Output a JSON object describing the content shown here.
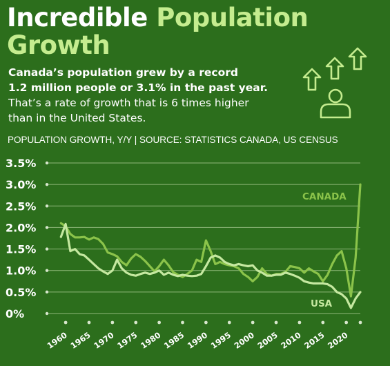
{
  "header": {
    "title_white": "Incredible",
    "title_green": "Population",
    "title_green_2": "Growth",
    "subtitle_bold_1": "Canada’s population grew by a record",
    "subtitle_bold_2": "1.2 million people or 3.1% in the past year.",
    "subtitle_regular_1": "That’s a rate of growth that is 6 times higher",
    "subtitle_regular_2": "than in the United States.",
    "source": "POPULATION GROWTH, Y/Y | SOURCE: STATISTICS CANADA, US CENSUS"
  },
  "icons": [
    "arrow-up-icon",
    "arrow-up-icon",
    "arrow-up-icon",
    "person-icon"
  ],
  "colors": {
    "background": "#2c6e1c",
    "accent": "#c5ec8f",
    "canada": "#8bc34a",
    "usa": "#c5e8a0"
  },
  "chart_data": {
    "type": "line",
    "title": "",
    "xlabel": "",
    "ylabel": "",
    "xlim": [
      1956,
      2023
    ],
    "ylim": [
      0,
      3.5
    ],
    "y_tick_labels": [
      "0%",
      "0.5%",
      "1.0%",
      "1.5%",
      "2.0%",
      "2.5%",
      "3.0%",
      "3.5%"
    ],
    "x_tick_labels": [
      "1960",
      "1965",
      "1970",
      "1975",
      "1980",
      "1985",
      "1990",
      "1995",
      "2000",
      "2005",
      "2010",
      "2015",
      "2020"
    ],
    "grid": true,
    "series": [
      {
        "name": "CANADA",
        "points": [
          [
            1959,
            2.1
          ],
          [
            1960,
            2.03
          ],
          [
            1961,
            1.85
          ],
          [
            1962,
            1.77
          ],
          [
            1963,
            1.77
          ],
          [
            1964,
            1.78
          ],
          [
            1965,
            1.72
          ],
          [
            1966,
            1.77
          ],
          [
            1967,
            1.73
          ],
          [
            1968,
            1.62
          ],
          [
            1969,
            1.42
          ],
          [
            1970,
            1.38
          ],
          [
            1971,
            1.33
          ],
          [
            1972,
            1.2
          ],
          [
            1973,
            1.12
          ],
          [
            1974,
            1.28
          ],
          [
            1975,
            1.38
          ],
          [
            1976,
            1.32
          ],
          [
            1977,
            1.22
          ],
          [
            1978,
            1.1
          ],
          [
            1979,
            0.98
          ],
          [
            1980,
            1.1
          ],
          [
            1981,
            1.25
          ],
          [
            1982,
            1.12
          ],
          [
            1983,
            0.96
          ],
          [
            1984,
            0.9
          ],
          [
            1985,
            0.85
          ],
          [
            1986,
            0.92
          ],
          [
            1987,
            1.0
          ],
          [
            1988,
            1.25
          ],
          [
            1989,
            1.2
          ],
          [
            1990,
            1.7
          ],
          [
            1991,
            1.45
          ],
          [
            1992,
            1.15
          ],
          [
            1993,
            1.2
          ],
          [
            1994,
            1.15
          ],
          [
            1995,
            1.12
          ],
          [
            1996,
            1.1
          ],
          [
            1997,
            1.05
          ],
          [
            1998,
            0.92
          ],
          [
            1999,
            0.85
          ],
          [
            2000,
            0.75
          ],
          [
            2001,
            0.85
          ],
          [
            2002,
            1.05
          ],
          [
            2003,
            0.92
          ],
          [
            2004,
            0.88
          ],
          [
            2005,
            0.92
          ],
          [
            2006,
            0.92
          ],
          [
            2007,
            0.97
          ],
          [
            2008,
            1.1
          ],
          [
            2009,
            1.08
          ],
          [
            2010,
            1.05
          ],
          [
            2011,
            0.95
          ],
          [
            2012,
            1.05
          ],
          [
            2013,
            0.98
          ],
          [
            2014,
            0.92
          ],
          [
            2015,
            0.75
          ],
          [
            2016,
            0.9
          ],
          [
            2017,
            1.15
          ],
          [
            2018,
            1.35
          ],
          [
            2019,
            1.45
          ],
          [
            2020,
            1.05
          ],
          [
            2021,
            0.4
          ],
          [
            2022,
            1.3
          ],
          [
            2023,
            3.0
          ]
        ]
      },
      {
        "name": "USA",
        "points": [
          [
            1959,
            1.78
          ],
          [
            1960,
            2.08
          ],
          [
            1961,
            1.45
          ],
          [
            1962,
            1.5
          ],
          [
            1963,
            1.38
          ],
          [
            1964,
            1.35
          ],
          [
            1965,
            1.25
          ],
          [
            1966,
            1.15
          ],
          [
            1967,
            1.05
          ],
          [
            1968,
            0.98
          ],
          [
            1969,
            0.92
          ],
          [
            1970,
            1.0
          ],
          [
            1971,
            1.25
          ],
          [
            1972,
            1.05
          ],
          [
            1973,
            0.95
          ],
          [
            1974,
            0.9
          ],
          [
            1975,
            0.88
          ],
          [
            1976,
            0.92
          ],
          [
            1977,
            0.95
          ],
          [
            1978,
            0.92
          ],
          [
            1979,
            0.95
          ],
          [
            1980,
            1.0
          ],
          [
            1981,
            0.9
          ],
          [
            1982,
            0.95
          ],
          [
            1983,
            0.9
          ],
          [
            1984,
            0.87
          ],
          [
            1985,
            0.9
          ],
          [
            1986,
            0.88
          ],
          [
            1987,
            0.87
          ],
          [
            1988,
            0.88
          ],
          [
            1989,
            0.92
          ],
          [
            1990,
            1.1
          ],
          [
            1991,
            1.3
          ],
          [
            1992,
            1.35
          ],
          [
            1993,
            1.3
          ],
          [
            1994,
            1.2
          ],
          [
            1995,
            1.15
          ],
          [
            1996,
            1.12
          ],
          [
            1997,
            1.15
          ],
          [
            1998,
            1.12
          ],
          [
            1999,
            1.1
          ],
          [
            2000,
            1.12
          ],
          [
            2001,
            1.0
          ],
          [
            2002,
            0.95
          ],
          [
            2003,
            0.88
          ],
          [
            2004,
            0.88
          ],
          [
            2005,
            0.9
          ],
          [
            2006,
            0.9
          ],
          [
            2007,
            0.95
          ],
          [
            2008,
            0.92
          ],
          [
            2009,
            0.88
          ],
          [
            2010,
            0.83
          ],
          [
            2011,
            0.75
          ],
          [
            2012,
            0.72
          ],
          [
            2013,
            0.7
          ],
          [
            2014,
            0.7
          ],
          [
            2015,
            0.7
          ],
          [
            2016,
            0.68
          ],
          [
            2017,
            0.62
          ],
          [
            2018,
            0.5
          ],
          [
            2019,
            0.45
          ],
          [
            2020,
            0.35
          ],
          [
            2021,
            0.13
          ],
          [
            2022,
            0.35
          ],
          [
            2023,
            0.5
          ]
        ]
      }
    ],
    "annotations": [
      "CANADA",
      "USA"
    ]
  }
}
